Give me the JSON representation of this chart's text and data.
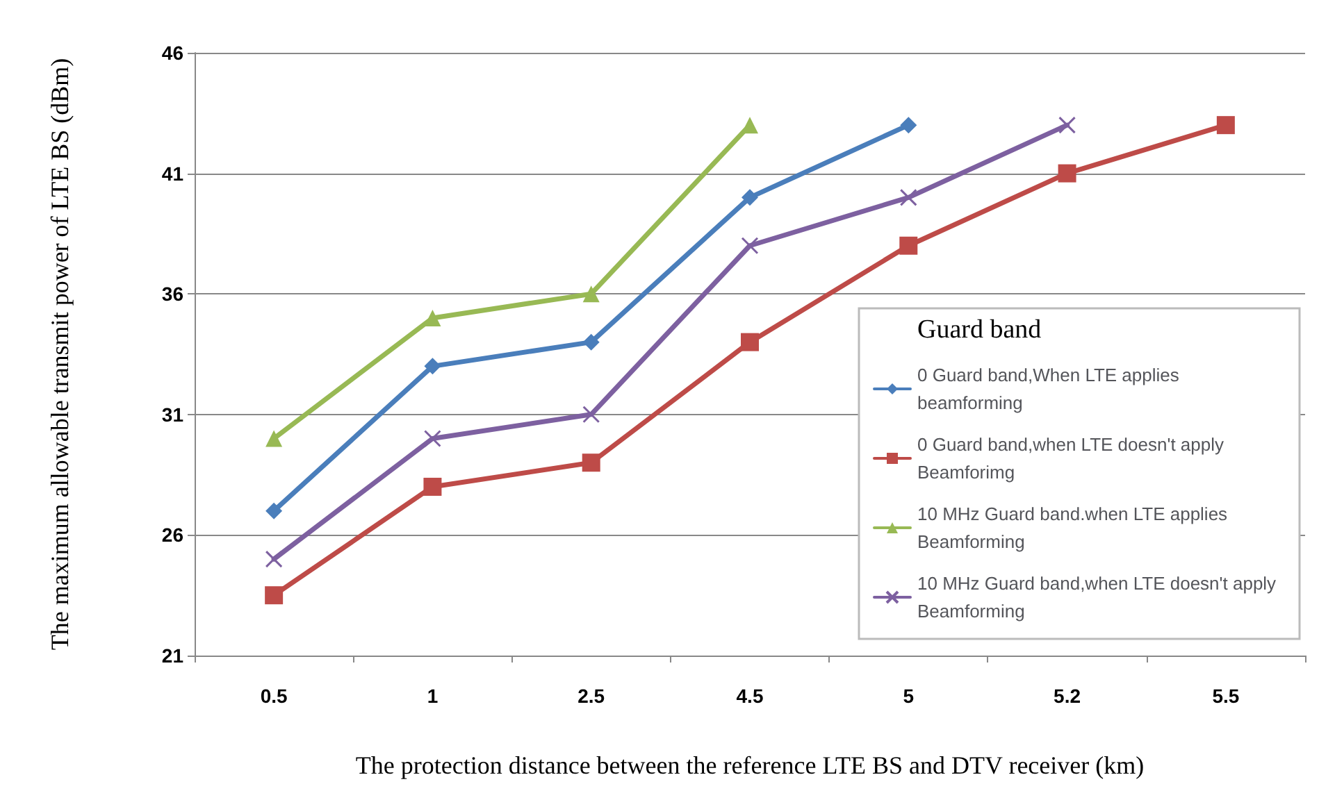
{
  "chart_data": {
    "type": "line",
    "xlabel": "The protection distance between the reference LTE BS and DTV receiver (km)",
    "ylabel": "The maximum allowable transmit power of LTE BS (dBm)",
    "legend_title": "Guard band",
    "categories": [
      "0.5",
      "1",
      "2.5",
      "4.5",
      "5",
      "5.2",
      "5.5"
    ],
    "ylim": [
      21,
      46
    ],
    "yticks": [
      21,
      26,
      31,
      36,
      41,
      46
    ],
    "grid": "y",
    "legend": "right",
    "series": [
      {
        "name": "0 Guard band,When LTE applies beamforming",
        "color": "#4a7ebb",
        "marker": "diamond",
        "values": [
          27,
          33,
          34,
          40,
          43,
          null,
          null
        ]
      },
      {
        "name": "0 Guard band,when LTE doesn't apply Beamforimg",
        "color": "#be4b48",
        "marker": "square",
        "values": [
          23.5,
          28,
          29,
          34,
          38,
          41,
          43
        ]
      },
      {
        "name": "10 MHz Guard band.when LTE applies Beamforming",
        "color": "#98b954",
        "marker": "triangle",
        "values": [
          30,
          35,
          36,
          43,
          null,
          null,
          null
        ]
      },
      {
        "name": "10 MHz Guard band,when LTE doesn't apply Beamforming",
        "color": "#7d60a0",
        "marker": "cross",
        "values": [
          25,
          30,
          31,
          38,
          40,
          43,
          null
        ]
      }
    ]
  }
}
